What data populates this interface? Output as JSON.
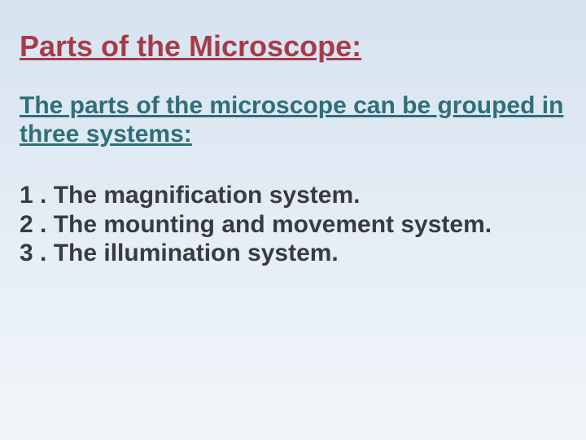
{
  "title": {
    "text": "Parts of the Microscope:",
    "color": "#a63c4a",
    "fontsize": 36,
    "underline": true,
    "bold": true
  },
  "subtitle": {
    "text": "The parts of the microscope can be grouped in three systems:",
    "color": "#2f6f7a",
    "fontsize": 30,
    "underline": true,
    "bold": true
  },
  "list": {
    "color": "#3a3a44",
    "fontsize": 30,
    "bold": true,
    "items": [
      "1 . The magnification system.",
      "2 . The mounting and movement system.",
      "3 . The illumination system."
    ]
  },
  "background": {
    "top": "#d6e3f0",
    "bottom": "#f2f6fa"
  }
}
